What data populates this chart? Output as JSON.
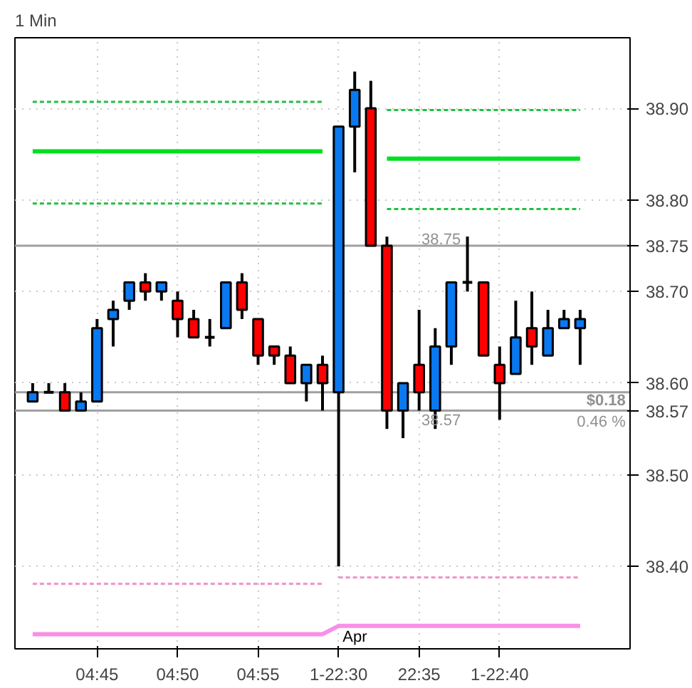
{
  "chart_data": {
    "type": "candlestick",
    "title": "1 Min",
    "categories": [
      null,
      null,
      null,
      null,
      "04:45",
      null,
      null,
      null,
      null,
      "04:50",
      null,
      null,
      null,
      null,
      "04:55",
      null,
      null,
      null,
      null,
      "1-22:30",
      null,
      null,
      null,
      null,
      "22:35",
      null,
      null,
      null,
      null,
      "1-22:40",
      null,
      null,
      null,
      null,
      null
    ],
    "ohlc": [
      [
        38.58,
        38.6,
        38.58,
        38.59
      ],
      [
        38.59,
        38.6,
        38.59,
        38.59
      ],
      [
        38.59,
        38.6,
        38.57,
        38.57
      ],
      [
        38.57,
        38.59,
        38.57,
        38.58
      ],
      [
        38.58,
        38.67,
        38.58,
        38.66
      ],
      [
        38.67,
        38.69,
        38.64,
        38.68
      ],
      [
        38.69,
        38.71,
        38.68,
        38.71
      ],
      [
        38.71,
        38.72,
        38.69,
        38.7
      ],
      [
        38.7,
        38.71,
        38.69,
        38.71
      ],
      [
        38.69,
        38.7,
        38.65,
        38.67
      ],
      [
        38.67,
        38.68,
        38.65,
        38.65
      ],
      [
        38.65,
        38.67,
        38.64,
        38.65
      ],
      [
        38.66,
        38.71,
        38.66,
        38.71
      ],
      [
        38.71,
        38.72,
        38.67,
        38.68
      ],
      [
        38.67,
        38.67,
        38.62,
        38.63
      ],
      [
        38.64,
        38.64,
        38.62,
        38.63
      ],
      [
        38.63,
        38.64,
        38.6,
        38.6
      ],
      [
        38.6,
        38.62,
        38.58,
        38.62
      ],
      [
        38.62,
        38.63,
        38.57,
        38.6
      ],
      [
        38.59,
        38.88,
        38.4,
        38.88
      ],
      [
        38.88,
        38.94,
        38.83,
        38.92
      ],
      [
        38.9,
        38.93,
        38.75,
        38.75
      ],
      [
        38.75,
        38.76,
        38.55,
        38.57
      ],
      [
        38.57,
        38.6,
        38.54,
        38.6
      ],
      [
        38.62,
        38.68,
        38.57,
        38.59
      ],
      [
        38.57,
        38.66,
        38.55,
        38.64
      ],
      [
        38.64,
        38.71,
        38.62,
        38.71
      ],
      [
        38.71,
        38.76,
        38.7,
        38.71
      ],
      [
        38.71,
        38.71,
        38.63,
        38.63
      ],
      [
        38.62,
        38.64,
        38.56,
        38.6
      ],
      [
        38.61,
        38.69,
        38.61,
        38.65
      ],
      [
        38.66,
        38.7,
        38.62,
        38.64
      ],
      [
        38.63,
        38.68,
        38.63,
        38.66
      ],
      [
        38.66,
        38.68,
        38.66,
        38.67
      ],
      [
        38.66,
        38.68,
        38.62,
        38.67
      ]
    ],
    "colors": [
      "#0a78f0",
      "#000000",
      "#ff0000",
      "#0a78f0",
      "#0a78f0",
      "#0a78f0",
      "#0a78f0",
      "#ff0000",
      "#0a78f0",
      "#ff0000",
      "#ff0000",
      "#000000",
      "#0a78f0",
      "#ff0000",
      "#ff0000",
      "#ff0000",
      "#ff0000",
      "#0a78f0",
      "#ff0000",
      "#0a78f0",
      "#0a78f0",
      "#ff0000",
      "#ff0000",
      "#0a78f0",
      "#ff0000",
      "#0a78f0",
      "#0a78f0",
      "#000000",
      "#ff0000",
      "#ff0000",
      "#0a78f0",
      "#ff0000",
      "#0a78f0",
      "#0a78f0",
      "#0a78f0"
    ],
    "series": [
      {
        "type": "line",
        "color": "#00e020",
        "line_style": "solid",
        "values": [
          38.853,
          38.853,
          38.853,
          38.853,
          38.853,
          38.853,
          38.853,
          38.853,
          38.853,
          38.853,
          38.853,
          38.853,
          38.853,
          38.853,
          38.853,
          38.853,
          38.853,
          38.853,
          38.853,
          null,
          null,
          null,
          38.845,
          38.845,
          38.845,
          38.845,
          38.845,
          38.845,
          38.845,
          38.845,
          38.845,
          38.845,
          38.845,
          38.845,
          38.845
        ]
      },
      {
        "type": "line",
        "color": "#20c040",
        "line_style": "dashed",
        "values": [
          38.907,
          38.907,
          38.907,
          38.907,
          38.907,
          38.907,
          38.907,
          38.907,
          38.907,
          38.907,
          38.907,
          38.907,
          38.907,
          38.907,
          38.907,
          38.907,
          38.907,
          38.907,
          38.907,
          null,
          null,
          null,
          null,
          null,
          null,
          null,
          null,
          null,
          null,
          null,
          null,
          null,
          null,
          null,
          null
        ]
      },
      {
        "type": "line",
        "color": "#20c040",
        "line_style": "dashed",
        "values": [
          null,
          null,
          null,
          null,
          null,
          null,
          null,
          null,
          null,
          null,
          null,
          null,
          null,
          null,
          null,
          null,
          null,
          null,
          null,
          null,
          null,
          null,
          38.898,
          38.898,
          38.898,
          38.898,
          38.898,
          38.898,
          38.898,
          38.898,
          38.898,
          38.898,
          38.898,
          38.898,
          38.898
        ]
      },
      {
        "type": "line",
        "color": "#20c040",
        "line_style": "dashed",
        "values": [
          38.796,
          38.796,
          38.796,
          38.796,
          38.796,
          38.796,
          38.796,
          38.796,
          38.796,
          38.796,
          38.796,
          38.796,
          38.796,
          38.796,
          38.796,
          38.796,
          38.796,
          38.796,
          38.796,
          null,
          null,
          null,
          null,
          null,
          null,
          null,
          null,
          null,
          null,
          null,
          null,
          null,
          null,
          null,
          null
        ]
      },
      {
        "type": "line",
        "color": "#20c040",
        "line_style": "dashed",
        "values": [
          null,
          null,
          null,
          null,
          null,
          null,
          null,
          null,
          null,
          null,
          null,
          null,
          null,
          null,
          null,
          null,
          null,
          null,
          null,
          null,
          null,
          null,
          38.79,
          38.79,
          38.79,
          38.79,
          38.79,
          38.79,
          38.79,
          38.79,
          38.79,
          38.79,
          38.79,
          38.79,
          38.79
        ]
      },
      {
        "type": "line",
        "color": "#f090c8",
        "line_style": "dashed",
        "values": [
          38.381,
          38.381,
          38.381,
          38.381,
          38.381,
          38.381,
          38.381,
          38.381,
          38.381,
          38.381,
          38.381,
          38.381,
          38.381,
          38.381,
          38.381,
          38.381,
          38.381,
          38.381,
          38.381,
          null,
          null,
          null,
          null,
          null,
          null,
          null,
          null,
          null,
          null,
          null,
          null,
          null,
          null,
          null,
          null
        ]
      },
      {
        "type": "line",
        "color": "#f090c8",
        "line_style": "dashed",
        "values": [
          null,
          null,
          null,
          null,
          null,
          null,
          null,
          null,
          null,
          null,
          null,
          null,
          null,
          null,
          null,
          null,
          null,
          null,
          null,
          38.388,
          38.388,
          38.388,
          38.388,
          38.388,
          38.388,
          38.388,
          38.388,
          38.388,
          38.388,
          38.388,
          38.388,
          38.388,
          38.388,
          38.388,
          38.388
        ]
      },
      {
        "type": "line",
        "color": "#f890e8",
        "line_style": "solid",
        "values": [
          38.326,
          38.326,
          38.326,
          38.326,
          38.326,
          38.326,
          38.326,
          38.326,
          38.326,
          38.326,
          38.326,
          38.326,
          38.326,
          38.326,
          38.326,
          38.326,
          38.326,
          38.326,
          38.326,
          38.335,
          38.335,
          38.335,
          38.335,
          38.335,
          38.335,
          38.335,
          38.335,
          38.335,
          38.335,
          38.335,
          38.335,
          38.335,
          38.335,
          38.335,
          38.335
        ]
      }
    ],
    "ylim": [
      38.31,
      38.977
    ],
    "yticks": [
      {
        "value": 38.4,
        "label": "38.40"
      },
      {
        "value": 38.5,
        "label": "38.50"
      },
      {
        "value": 38.6,
        "label": "38.60"
      },
      {
        "value": 38.7,
        "label": "38.70"
      },
      {
        "value": 38.8,
        "label": "38.80"
      },
      {
        "value": 38.9,
        "label": "38.90"
      }
    ],
    "ref_lines": [
      {
        "axis": "y",
        "value": 38.59,
        "color": "#a0a0a0"
      },
      {
        "axis": "y",
        "value": 38.75,
        "label": "38.75",
        "color": "#a0a0a0"
      },
      {
        "axis": "y",
        "value": 38.57,
        "label": "38.57",
        "color": "#a0a0a0"
      }
    ],
    "annotations": [
      "38.75",
      "38.57",
      {
        "text": "$0.18",
        "y": 38.57
      },
      {
        "text": "0.46 %",
        "y": 38.57
      },
      "Apr"
    ],
    "grid": true
  }
}
